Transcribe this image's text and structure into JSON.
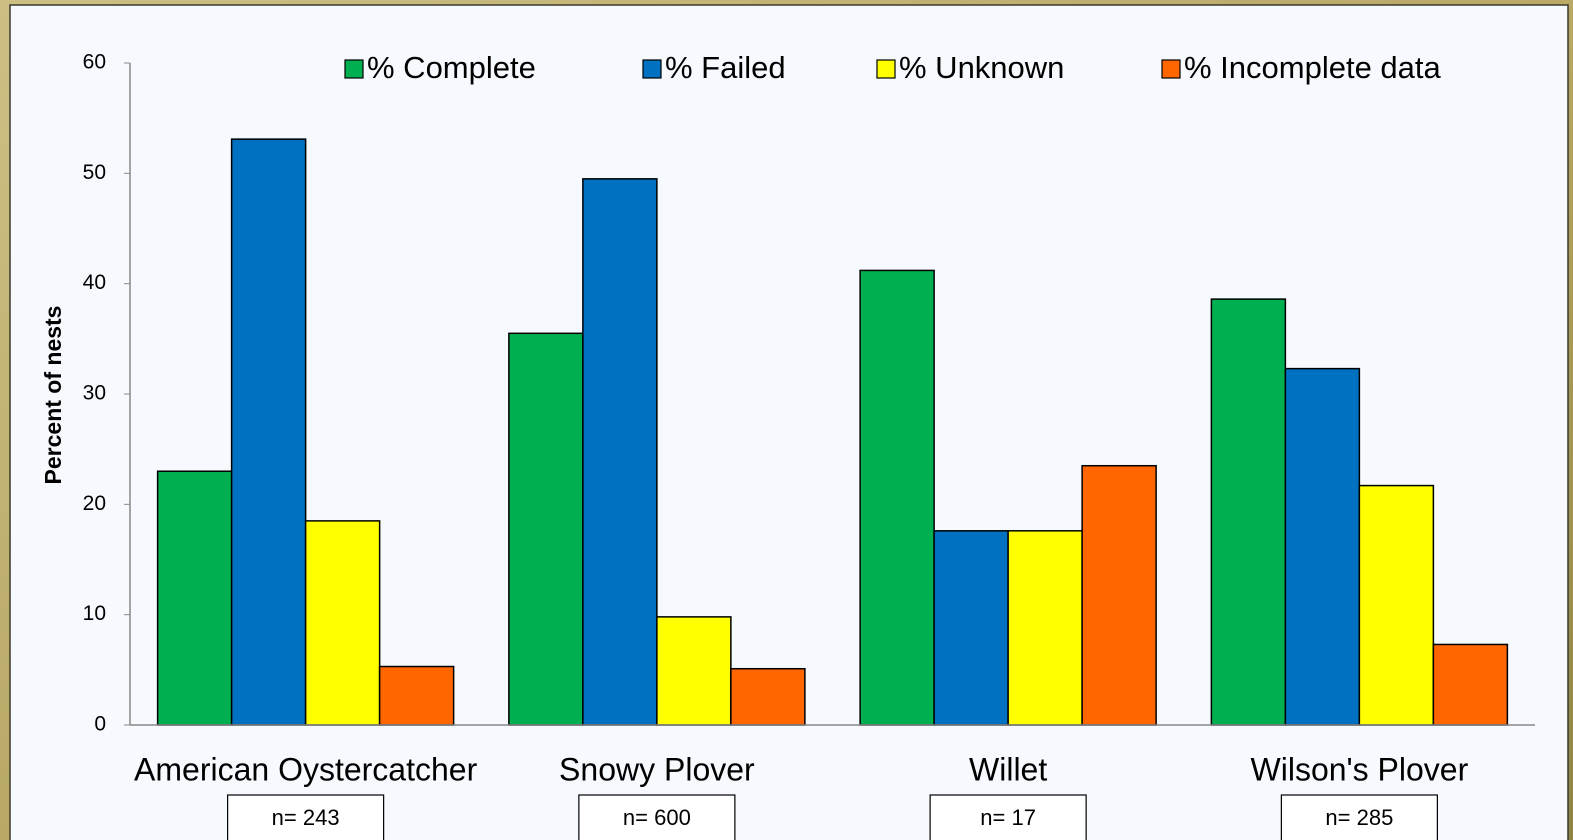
{
  "chart_data": {
    "type": "bar",
    "y_label": "Percent of nests",
    "categories": [
      "American Oystercatcher",
      "Snowy Plover",
      "Willet",
      "Wilson's Plover"
    ],
    "annotations": [
      "n= 243",
      "n= 600",
      "n= 17",
      "n= 285"
    ],
    "series": [
      {
        "name": "% Complete",
        "color": "#00b050",
        "values": [
          23.0,
          35.5,
          41.2,
          38.6
        ]
      },
      {
        "name": "% Failed",
        "color": "#0070c0",
        "values": [
          53.1,
          49.5,
          17.6,
          32.3
        ]
      },
      {
        "name": "% Unknown",
        "color": "#ffff00",
        "values": [
          18.5,
          9.8,
          17.6,
          21.7
        ]
      },
      {
        "name": "% Incomplete data",
        "color": "#ff6600",
        "values": [
          5.3,
          5.1,
          23.5,
          7.3
        ]
      }
    ],
    "ylim": [
      0,
      60
    ],
    "yticks": [
      0,
      10,
      20,
      30,
      40,
      50,
      60
    ],
    "grid": false,
    "legend": "top"
  }
}
